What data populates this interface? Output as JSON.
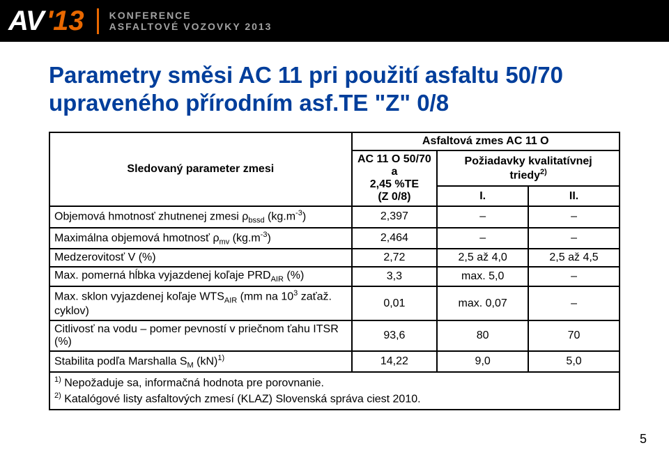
{
  "topbar": {
    "logo_av": "AV",
    "logo_year": "'13",
    "conf_line1": "KONFERENCE",
    "conf_line2": "ASFALTOVÉ VOZOVKY 2013",
    "bg_color": "#000000",
    "accent_color": "#e96800",
    "text_muted": "#a2a2a2"
  },
  "title": "Parametry směsi AC 11 pri použití asfaltu 50/70 upraveného přírodním asf.TE \"Z\" 0/8",
  "title_color": "#003e9b",
  "table": {
    "header": {
      "param_label": "Sledovaný parameter zmesi",
      "mix_label": "Asfaltová zmes AC 11 O",
      "value_col_line1": "AC 11 O 50/70 a",
      "value_col_line2": "2,45 %TE",
      "value_col_line3": "(Z 0/8)",
      "req_label_line1": "Požiadavky kvalitatívnej",
      "req_label_line2_prefix": "triedy",
      "req_label_sup": "2)",
      "req_sub_I": "I.",
      "req_sub_II": "II."
    },
    "rows": [
      {
        "p_pre": "Objemová hmotnosť zhutnenej zmesi ρ",
        "p_sub": "bssd",
        "p_post": " (kg.m",
        "p_sup": "-3",
        "p_tail": ")",
        "v": "2,397",
        "q1": "–",
        "q2": "–"
      },
      {
        "p_pre": "Maximálna objemová hmotnosť ρ",
        "p_sub": "mv",
        "p_post": " (kg.m",
        "p_sup": "-3",
        "p_tail": ")",
        "v": "2,464",
        "q1": "–",
        "q2": "–"
      },
      {
        "p_pre": "Medzerovitosť V (%)",
        "p_sub": "",
        "p_post": "",
        "p_sup": "",
        "p_tail": "",
        "v": "2,72",
        "q1": "2,5 až 4,0",
        "q2": "2,5 až 4,5"
      },
      {
        "p_pre": "Max. pomerná hĺbka vyjazdenej koľaje PRD",
        "p_sub": "AIR",
        "p_post": " (%)",
        "p_sup": "",
        "p_tail": "",
        "v": "3,3",
        "q1": "max. 5,0",
        "q2": "–"
      },
      {
        "p_pre": "Max. sklon vyjazdenej koľaje WTS",
        "p_sub": "AIR",
        "p_post": " (mm na 10",
        "p_sup": "3",
        "p_tail": " zaťaž. cyklov)",
        "v": "0,01",
        "q1": "max. 0,07",
        "q2": "–"
      },
      {
        "p_pre": "Citlivosť na vodu – pomer pevností v priečnom ťahu ITSR (%)",
        "p_sub": "",
        "p_post": "",
        "p_sup": "",
        "p_tail": "",
        "v": "93,6",
        "q1": "80",
        "q2": "70"
      },
      {
        "p_pre": "Stabilita podľa Marshalla S",
        "p_sub": "M",
        "p_post": " (kN)",
        "p_sup": "1)",
        "p_tail": "",
        "v": "14,22",
        "q1": "9,0",
        "q2": "5,0"
      }
    ],
    "footnotes": {
      "f1_sup": "1)",
      "f1_text": " Nepožaduje sa, informačná hodnota pre porovnanie.",
      "f2_sup": "2)",
      "f2_text": " Katalógové listy asfaltových zmesí (KLAZ) Slovenská správa ciest 2010."
    },
    "border_color": "#000000",
    "font_size_pt": 12
  },
  "page_number": "5"
}
